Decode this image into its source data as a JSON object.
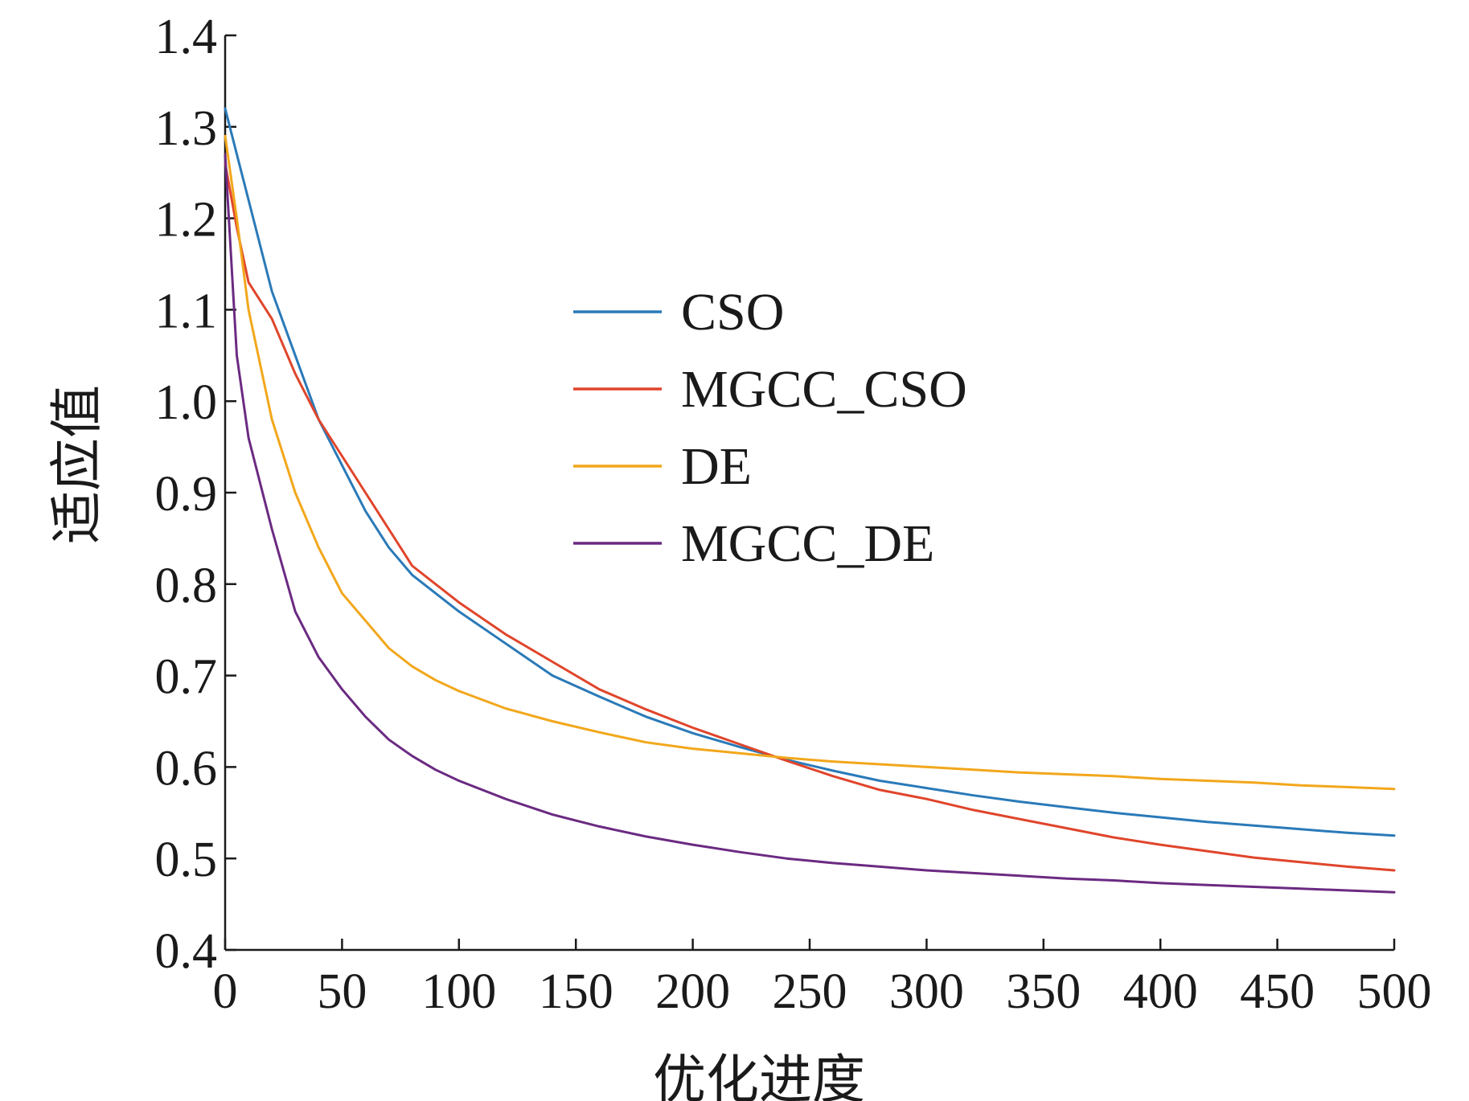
{
  "chart_data": {
    "type": "line",
    "xlabel": "优化进度",
    "ylabel": "适应值",
    "xlim": [
      0,
      500
    ],
    "ylim": [
      0.4,
      1.4
    ],
    "x_ticks": [
      0,
      50,
      100,
      150,
      200,
      250,
      300,
      350,
      400,
      450,
      500
    ],
    "x_tick_labels": [
      "0",
      "50",
      "100",
      "150",
      "200",
      "250",
      "300",
      "350",
      "400",
      "450",
      "500"
    ],
    "y_ticks": [
      0.4,
      0.5,
      0.6,
      0.7,
      0.8,
      0.9,
      1.0,
      1.1,
      1.2,
      1.3,
      1.4
    ],
    "y_tick_labels": [
      "0.4",
      "0.5",
      "0.6",
      "0.7",
      "0.8",
      "0.9",
      "1.0",
      "1.1",
      "1.2",
      "1.3",
      "1.4"
    ],
    "grid": false,
    "legend_position": "center",
    "x": [
      0,
      5,
      10,
      20,
      30,
      40,
      50,
      60,
      70,
      80,
      90,
      100,
      120,
      140,
      160,
      180,
      200,
      220,
      240,
      260,
      280,
      300,
      320,
      340,
      360,
      380,
      400,
      420,
      440,
      460,
      480,
      500
    ],
    "series": [
      {
        "name": "CSO",
        "color": "#2a7ab8",
        "values": [
          1.32,
          1.27,
          1.22,
          1.12,
          1.05,
          0.98,
          0.93,
          0.88,
          0.84,
          0.81,
          0.79,
          0.77,
          0.735,
          0.7,
          0.677,
          0.655,
          0.637,
          0.622,
          0.608,
          0.596,
          0.585,
          0.577,
          0.569,
          0.562,
          0.556,
          0.55,
          0.545,
          0.54,
          0.536,
          0.532,
          0.528,
          0.525
        ]
      },
      {
        "name": "MGCC_CSO",
        "color": "#e0452b",
        "values": [
          1.26,
          1.19,
          1.13,
          1.09,
          1.03,
          0.98,
          0.94,
          0.9,
          0.86,
          0.82,
          0.8,
          0.78,
          0.745,
          0.715,
          0.685,
          0.663,
          0.643,
          0.625,
          0.607,
          0.59,
          0.575,
          0.565,
          0.553,
          0.543,
          0.533,
          0.523,
          0.515,
          0.508,
          0.501,
          0.496,
          0.491,
          0.487
        ]
      },
      {
        "name": "DE",
        "color": "#f2a71b",
        "values": [
          1.29,
          1.2,
          1.1,
          0.98,
          0.9,
          0.84,
          0.79,
          0.76,
          0.73,
          0.71,
          0.695,
          0.683,
          0.664,
          0.65,
          0.638,
          0.627,
          0.62,
          0.615,
          0.61,
          0.606,
          0.603,
          0.6,
          0.597,
          0.594,
          0.592,
          0.59,
          0.587,
          0.585,
          0.583,
          0.58,
          0.578,
          0.576
        ]
      },
      {
        "name": "MGCC_DE",
        "color": "#6b2a82",
        "values": [
          1.27,
          1.05,
          0.96,
          0.86,
          0.77,
          0.72,
          0.685,
          0.655,
          0.63,
          0.612,
          0.597,
          0.585,
          0.565,
          0.548,
          0.535,
          0.524,
          0.515,
          0.507,
          0.5,
          0.495,
          0.491,
          0.487,
          0.484,
          0.481,
          0.478,
          0.476,
          0.473,
          0.471,
          0.469,
          0.467,
          0.465,
          0.463
        ]
      }
    ]
  }
}
